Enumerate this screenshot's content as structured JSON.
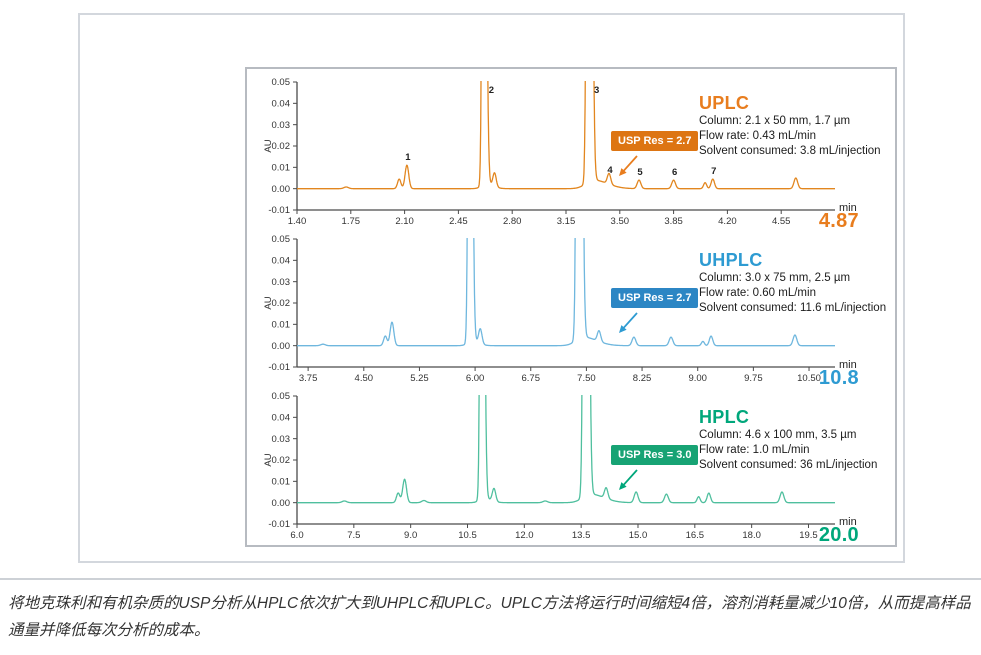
{
  "figure": {
    "caption": "将地克珠利和有机杂质的USP分析从HPLC依次扩大到UHPLC和UPLC。UPLC方法将运行时间缩短4倍，溶剂消耗量减少10倍，从而提高样品通量并降低每次分析的成本。"
  },
  "chart_data": [
    {
      "type": "line",
      "id": "uplc",
      "title": "UPLC",
      "info_lines": [
        "Column: 2.1 x 50 mm, 1.7 µm",
        "Flow rate: 0.43 mL/min",
        "Solvent consumed: 3.8 mL/injection"
      ],
      "badge": {
        "label": "USP Res = 2.7",
        "bg": "#dd7513"
      },
      "color_title": "#e87d1e",
      "color_curve": "#e2861f",
      "color_accent": "#e87d1e",
      "xlabel": "min",
      "total_time": "4.87",
      "ylabel": "AU",
      "xmin": 1.4,
      "xmax": 4.9,
      "ylim": [
        -0.01,
        0.05
      ],
      "x_ticks": [
        1.4,
        1.75,
        2.1,
        2.45,
        2.8,
        3.15,
        3.5,
        3.85,
        4.2,
        4.55
      ],
      "x_tick_labels": [
        "1.40",
        "1.75",
        "2.10",
        "2.45",
        "2.80",
        "3.15",
        "3.50",
        "3.85",
        "4.20",
        "4.55"
      ],
      "y_ticks": [
        0.05,
        0.04,
        0.03,
        0.02,
        0.01,
        0.0,
        -0.01
      ],
      "y_tick_labels": [
        "0.05",
        "0.04",
        "0.03",
        "0.02",
        "0.01",
        "0.00",
        "-0.01"
      ],
      "legend": "none",
      "grid": false,
      "peaks": [
        {
          "t": 1.72,
          "h": 0.0008,
          "w": 0.015
        },
        {
          "t": 2.065,
          "h": 0.0045,
          "w": 0.011
        },
        {
          "t": 2.115,
          "h": 0.011,
          "w": 0.012,
          "label": "1"
        },
        {
          "t": 2.615,
          "h": 0.35,
          "w": 0.009,
          "tail": 1.5,
          "label": "2"
        },
        {
          "t": 2.63,
          "h": 0.002,
          "w": 0.03,
          "tail": 1.5
        },
        {
          "t": 2.685,
          "h": 0.0065,
          "w": 0.011
        },
        {
          "t": 3.3,
          "h": 0.6,
          "w": 0.011,
          "tail": 1.3,
          "label": "3"
        },
        {
          "t": 3.33,
          "h": 0.004,
          "w": 0.05,
          "tail": 1.8
        },
        {
          "t": 3.43,
          "h": 0.005,
          "w": 0.011,
          "label": "4"
        },
        {
          "t": 3.625,
          "h": 0.004,
          "w": 0.012,
          "label": "5"
        },
        {
          "t": 3.85,
          "h": 0.004,
          "w": 0.012,
          "label": "6"
        },
        {
          "t": 4.055,
          "h": 0.0028,
          "w": 0.01
        },
        {
          "t": 4.105,
          "h": 0.0045,
          "w": 0.011,
          "label": "7"
        },
        {
          "t": 4.645,
          "h": 0.005,
          "w": 0.012
        }
      ]
    },
    {
      "type": "line",
      "id": "uhplc",
      "title": "UHPLC",
      "info_lines": [
        "Column: 3.0 x 75 mm, 2.5 µm",
        "Flow rate: 0.60 mL/min",
        "Solvent consumed: 11.6 mL/injection"
      ],
      "badge": {
        "label": "USP Res = 2.7",
        "bg": "#2c86c4"
      },
      "color_title": "#2e9bd2",
      "color_curve": "#6fb7de",
      "color_accent": "#2e9bd2",
      "xlabel": "min",
      "total_time": "10.8",
      "ylabel": "AU",
      "xmin": 3.6,
      "xmax": 10.85,
      "ylim": [
        -0.01,
        0.05
      ],
      "x_ticks": [
        3.75,
        4.5,
        5.25,
        6.0,
        6.75,
        7.5,
        8.25,
        9.0,
        9.75,
        10.5
      ],
      "x_tick_labels": [
        "3.75",
        "4.50",
        "5.25",
        "6.00",
        "6.75",
        "7.50",
        "8.25",
        "9.00",
        "9.75",
        "10.50"
      ],
      "y_ticks": [
        0.05,
        0.04,
        0.03,
        0.02,
        0.01,
        0.0,
        -0.01
      ],
      "y_tick_labels": [
        "0.05",
        "0.04",
        "0.03",
        "0.02",
        "0.01",
        "0.00",
        "-0.01"
      ],
      "legend": "none",
      "grid": false,
      "peaks": [
        {
          "t": 3.95,
          "h": 0.0007,
          "w": 0.03
        },
        {
          "t": 4.79,
          "h": 0.0045,
          "w": 0.023
        },
        {
          "t": 4.88,
          "h": 0.011,
          "w": 0.025
        },
        {
          "t": 5.93,
          "h": 0.35,
          "w": 0.019,
          "tail": 1.4
        },
        {
          "t": 5.96,
          "h": 0.002,
          "w": 0.06,
          "tail": 1.5
        },
        {
          "t": 6.07,
          "h": 0.007,
          "w": 0.023
        },
        {
          "t": 7.4,
          "h": 0.6,
          "w": 0.023,
          "tail": 1.3
        },
        {
          "t": 7.46,
          "h": 0.004,
          "w": 0.1,
          "tail": 1.8
        },
        {
          "t": 7.67,
          "h": 0.005,
          "w": 0.023
        },
        {
          "t": 8.14,
          "h": 0.004,
          "w": 0.025
        },
        {
          "t": 8.64,
          "h": 0.004,
          "w": 0.025
        },
        {
          "t": 9.07,
          "h": 0.002,
          "w": 0.02
        },
        {
          "t": 9.18,
          "h": 0.0045,
          "w": 0.023
        },
        {
          "t": 10.31,
          "h": 0.005,
          "w": 0.025
        }
      ]
    },
    {
      "type": "line",
      "id": "hplc",
      "title": "HPLC",
      "info_lines": [
        "Column: 4.6 x 100 mm, 3.5 µm",
        "Flow rate: 1.0 mL/min",
        "Solvent consumed: 36 mL/injection"
      ],
      "badge": {
        "label": "USP Res = 3.0",
        "bg": "#17a374"
      },
      "color_title": "#00a77b",
      "color_curve": "#4fbf9e",
      "color_accent": "#00a77b",
      "xlabel": "min",
      "total_time": "20.0",
      "ylabel": "AU",
      "xmin": 6.0,
      "xmax": 20.2,
      "ylim": [
        -0.01,
        0.05
      ],
      "x_ticks": [
        6.0,
        7.5,
        9.0,
        10.5,
        12.0,
        13.5,
        15.0,
        16.5,
        18.0,
        19.5
      ],
      "x_tick_labels": [
        "6.0",
        "7.5",
        "9.0",
        "10.5",
        "12.0",
        "13.5",
        "15.0",
        "16.5",
        "18.0",
        "19.5"
      ],
      "y_ticks": [
        0.05,
        0.04,
        0.03,
        0.02,
        0.01,
        0.0,
        -0.01
      ],
      "y_tick_labels": [
        "0.05",
        "0.04",
        "0.03",
        "0.02",
        "0.01",
        "0.00",
        "-0.01"
      ],
      "legend": "none",
      "grid": false,
      "peaks": [
        {
          "t": 7.25,
          "h": 0.0008,
          "w": 0.06
        },
        {
          "t": 8.67,
          "h": 0.0045,
          "w": 0.045
        },
        {
          "t": 8.84,
          "h": 0.011,
          "w": 0.05
        },
        {
          "t": 9.35,
          "h": 0.001,
          "w": 0.06
        },
        {
          "t": 10.88,
          "h": 0.35,
          "w": 0.037,
          "tail": 1.4
        },
        {
          "t": 10.94,
          "h": 0.002,
          "w": 0.12,
          "tail": 1.5
        },
        {
          "t": 11.2,
          "h": 0.006,
          "w": 0.045
        },
        {
          "t": 12.55,
          "h": 0.0008,
          "w": 0.06
        },
        {
          "t": 13.62,
          "h": 0.6,
          "w": 0.045,
          "tail": 1.3
        },
        {
          "t": 13.74,
          "h": 0.004,
          "w": 0.2,
          "tail": 1.8
        },
        {
          "t": 14.16,
          "h": 0.005,
          "w": 0.045
        },
        {
          "t": 14.95,
          "h": 0.005,
          "w": 0.05
        },
        {
          "t": 15.75,
          "h": 0.004,
          "w": 0.05
        },
        {
          "t": 16.6,
          "h": 0.0028,
          "w": 0.04
        },
        {
          "t": 16.87,
          "h": 0.0045,
          "w": 0.045
        },
        {
          "t": 18.8,
          "h": 0.005,
          "w": 0.05
        }
      ]
    }
  ]
}
